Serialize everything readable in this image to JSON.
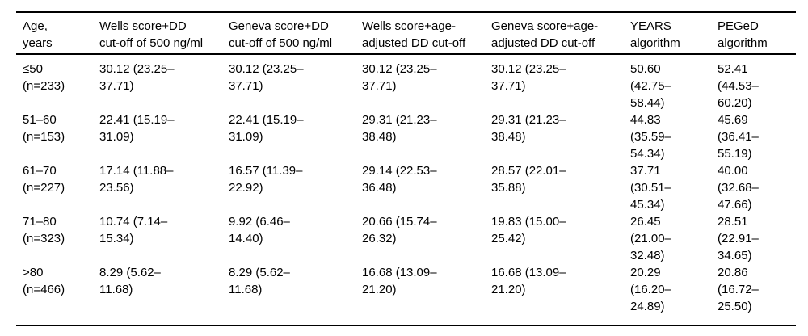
{
  "table": {
    "columns": [
      {
        "id": "age",
        "label": [
          "Age,",
          "years"
        ]
      },
      {
        "id": "wells_dd500",
        "label": [
          "Wells score+DD",
          "cut-off of 500 ng/ml"
        ]
      },
      {
        "id": "geneva_dd500",
        "label": [
          "Geneva score+DD",
          "cut-off of 500 ng/ml"
        ]
      },
      {
        "id": "wells_age_adjusted",
        "label": [
          "Wells score+age-",
          "adjusted DD cut-off"
        ]
      },
      {
        "id": "geneva_age_adjusted",
        "label": [
          "Geneva score+age-",
          "adjusted DD cut-off"
        ]
      },
      {
        "id": "years",
        "label": [
          "YEARS",
          "algorithm"
        ]
      },
      {
        "id": "peged",
        "label": [
          "PEGeD",
          "algorithm"
        ]
      }
    ],
    "rows": [
      {
        "age": [
          "≤50",
          "(n=233)"
        ],
        "cells": [
          [
            "30.12 (23.25–",
            "37.71)"
          ],
          [
            "30.12 (23.25–",
            "37.71)"
          ],
          [
            "30.12 (23.25–",
            "37.71)"
          ],
          [
            "30.12 (23.25–",
            "37.71)"
          ],
          [
            "50.60",
            "(42.75–",
            "58.44)"
          ],
          [
            "52.41",
            "(44.53–",
            "60.20)"
          ]
        ]
      },
      {
        "age": [
          "51–60",
          "(n=153)"
        ],
        "cells": [
          [
            "22.41 (15.19–",
            "31.09)"
          ],
          [
            "22.41 (15.19–",
            "31.09)"
          ],
          [
            "29.31 (21.23–",
            "38.48)"
          ],
          [
            "29.31 (21.23–",
            "38.48)"
          ],
          [
            "44.83",
            "(35.59–",
            "54.34)"
          ],
          [
            "45.69",
            "(36.41–",
            "55.19)"
          ]
        ]
      },
      {
        "age": [
          "61–70",
          "(n=227)"
        ],
        "cells": [
          [
            "17.14 (11.88–",
            "23.56)"
          ],
          [
            "16.57 (11.39–",
            "22.92)"
          ],
          [
            "29.14 (22.53–",
            "36.48)"
          ],
          [
            "28.57 (22.01–",
            "35.88)"
          ],
          [
            "37.71",
            "(30.51–",
            "45.34)"
          ],
          [
            "40.00",
            "(32.68–",
            "47.66)"
          ]
        ]
      },
      {
        "age": [
          "71–80",
          "(n=323)"
        ],
        "cells": [
          [
            "10.74 (7.14–",
            "15.34)"
          ],
          [
            "9.92 (6.46–",
            "14.40)"
          ],
          [
            "20.66 (15.74–",
            "26.32)"
          ],
          [
            "19.83 (15.00–",
            "25.42)"
          ],
          [
            "26.45",
            "(21.00–",
            "32.48)"
          ],
          [
            "28.51",
            "(22.91–",
            "34.65)"
          ]
        ]
      },
      {
        "age": [
          ">80",
          "(n=466)"
        ],
        "cells": [
          [
            "8.29 (5.62–",
            "11.68)"
          ],
          [
            "8.29 (5.62–",
            "11.68)"
          ],
          [
            "16.68 (13.09–",
            "21.20)"
          ],
          [
            "16.68 (13.09–",
            "21.20)"
          ],
          [
            "20.29",
            "(16.20–",
            "24.89)"
          ],
          [
            "20.86",
            "(16.72–",
            "25.50)"
          ]
        ]
      }
    ]
  }
}
